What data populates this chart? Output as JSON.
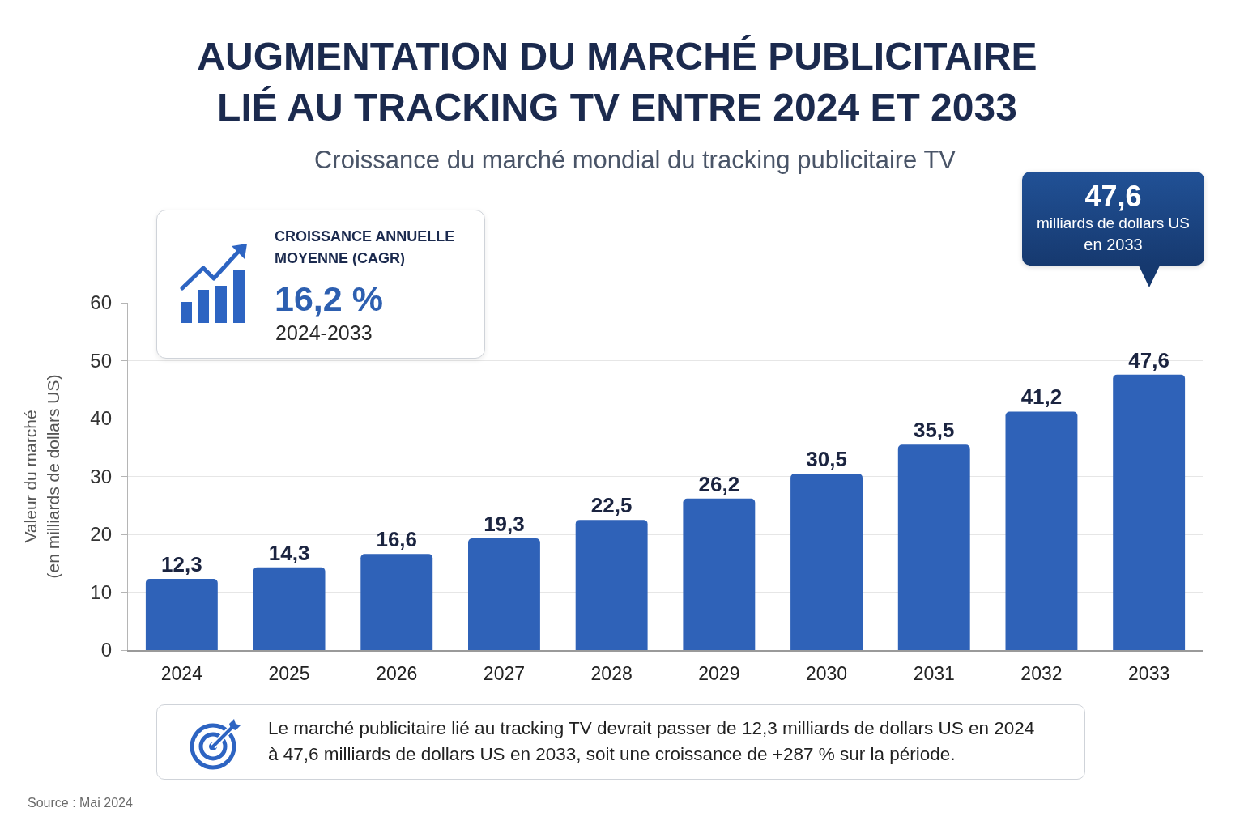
{
  "chart_data": {
    "type": "bar",
    "title": "AUGMENTATION DU MARCHÉ PUBLICITAIRE\nLIÉ AU TRACKING TV ENTRE 2024 ET 2033",
    "subtitle": "Croissance du marché mondial du tracking publicitaire TV",
    "ylabel": "Valeur du marché\n(en milliards de dollars US)",
    "categories": [
      "2024",
      "2025",
      "2026",
      "2027",
      "2028",
      "2029",
      "2030",
      "2031",
      "2032",
      "2033"
    ],
    "values": [
      12.3,
      14.3,
      16.6,
      19.3,
      22.5,
      26.2,
      30.5,
      35.5,
      41.2,
      47.6
    ],
    "value_labels": [
      "12,3",
      "14,3",
      "16,6",
      "19,3",
      "22,5",
      "26,2",
      "30,5",
      "35,5",
      "41,2",
      "47,6"
    ],
    "color": "#2f62b8",
    "ylim": [
      0,
      60
    ],
    "yticks": [
      0,
      10,
      20,
      30,
      40,
      50,
      60
    ],
    "grid": "y",
    "annotations": [
      "CROISSANCE ANNUELLE\nMOYENNE (CAGR)",
      "16,2 %",
      "2024-2033",
      "47,6\nmilliards de dollars US\nen 2033",
      "Le marché publicitaire lié au tracking TV devrait passer de 12,3 milliards de dollars US en 2024\nà 47,6 milliards de dollars US en 2033, soit une croissance de +287 % sur la période.",
      "Source : Mai 2024"
    ]
  }
}
